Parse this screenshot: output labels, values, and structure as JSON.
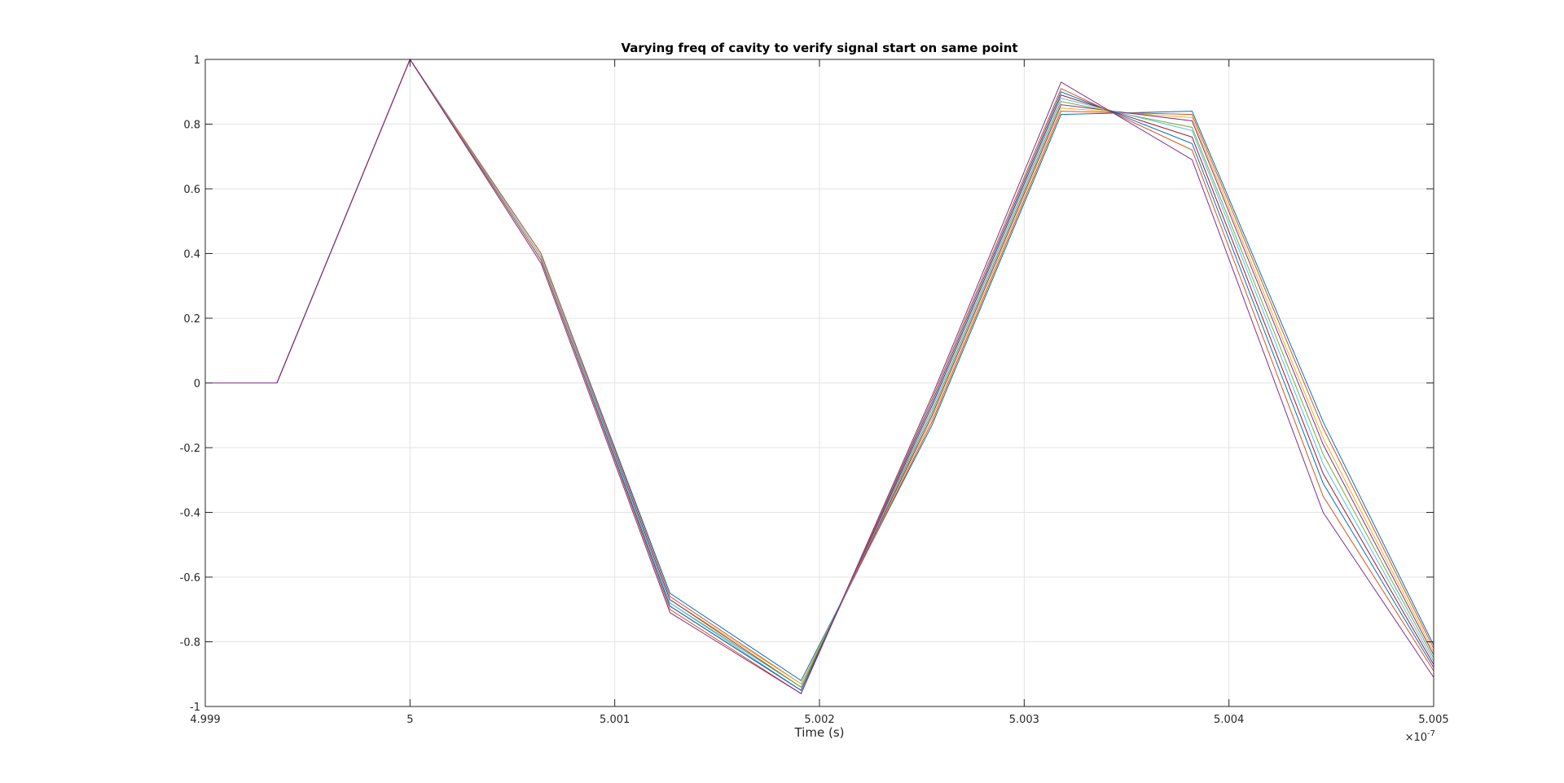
{
  "chart_data": {
    "type": "line",
    "title": "Varying freq of cavity to verify signal start on same point",
    "xlabel": "Time (s)",
    "ylabel": "",
    "x_exponent_label": "×10",
    "x_exponent_power": "-7",
    "xlim": [
      4.999,
      5.005
    ],
    "ylim": [
      -1,
      1
    ],
    "xticks": [
      4.999,
      5,
      5.001,
      5.002,
      5.003,
      5.004,
      5.005
    ],
    "xtick_labels": [
      "4.999",
      "5",
      "5.001",
      "5.002",
      "5.003",
      "5.004",
      "5.005"
    ],
    "yticks": [
      -1,
      -0.8,
      -0.6,
      -0.4,
      -0.2,
      0,
      0.2,
      0.4,
      0.6,
      0.8,
      1
    ],
    "ytick_labels": [
      "-1",
      "-0.8",
      "-0.6",
      "-0.4",
      "-0.2",
      "0",
      "0.2",
      "0.4",
      "0.6",
      "0.8",
      "1"
    ],
    "grid": true,
    "legend": false,
    "x": [
      4.999,
      4.99935,
      5.0,
      5.00064,
      5.00127,
      5.00191,
      5.00255,
      5.00318,
      5.00382,
      5.00446,
      5.005
    ],
    "series": [
      {
        "color": "#0072BD",
        "values": [
          0,
          0,
          1,
          0.4,
          -0.65,
          -0.92,
          -0.13,
          0.83,
          0.84,
          -0.12,
          -0.81
        ]
      },
      {
        "color": "#D95319",
        "values": [
          0,
          0,
          1,
          0.4,
          -0.66,
          -0.93,
          -0.12,
          0.84,
          0.83,
          -0.14,
          -0.82
        ]
      },
      {
        "color": "#EDB120",
        "values": [
          0,
          0,
          1,
          0.39,
          -0.67,
          -0.93,
          -0.11,
          0.85,
          0.82,
          -0.17,
          -0.83
        ]
      },
      {
        "color": "#7E2F8E",
        "values": [
          0,
          0,
          1,
          0.39,
          -0.67,
          -0.94,
          -0.1,
          0.86,
          0.81,
          -0.19,
          -0.84
        ]
      },
      {
        "color": "#77AC30",
        "values": [
          0,
          0,
          1,
          0.39,
          -0.68,
          -0.94,
          -0.09,
          0.87,
          0.79,
          -0.22,
          -0.85
        ]
      },
      {
        "color": "#4DBEEE",
        "values": [
          0,
          0,
          1,
          0.39,
          -0.68,
          -0.95,
          -0.08,
          0.88,
          0.78,
          -0.25,
          -0.86
        ]
      },
      {
        "color": "#A2142F",
        "values": [
          0,
          0,
          1,
          0.38,
          -0.69,
          -0.95,
          -0.07,
          0.89,
          0.76,
          -0.28,
          -0.87
        ]
      },
      {
        "color": "#0072BD",
        "values": [
          0,
          0,
          1,
          0.38,
          -0.69,
          -0.95,
          -0.06,
          0.9,
          0.74,
          -0.31,
          -0.88
        ]
      },
      {
        "color": "#D95319",
        "values": [
          0,
          0,
          1,
          0.38,
          -0.7,
          -0.96,
          -0.05,
          0.91,
          0.72,
          -0.35,
          -0.89
        ]
      },
      {
        "color": "#7E2F8E",
        "values": [
          0,
          0,
          1,
          0.37,
          -0.71,
          -0.96,
          -0.04,
          0.93,
          0.69,
          -0.4,
          -0.91
        ]
      }
    ]
  }
}
